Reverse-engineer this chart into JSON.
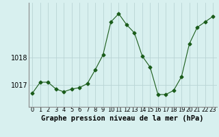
{
  "x": [
    0,
    1,
    2,
    3,
    4,
    5,
    6,
    7,
    8,
    9,
    10,
    11,
    12,
    13,
    14,
    15,
    16,
    17,
    18,
    19,
    20,
    21,
    22,
    23
  ],
  "y": [
    1016.7,
    1017.1,
    1017.1,
    1016.85,
    1016.75,
    1016.85,
    1016.9,
    1017.05,
    1017.55,
    1018.1,
    1019.3,
    1019.6,
    1019.2,
    1018.9,
    1018.05,
    1017.65,
    1016.65,
    1016.65,
    1016.8,
    1017.3,
    1018.5,
    1019.1,
    1019.3,
    1019.5
  ],
  "line_color": "#1a5c1a",
  "marker": "D",
  "marker_size": 2.5,
  "bg_color": "#d8f0ef",
  "grid_color": "#b8d4d4",
  "xlabel": "Graphe pression niveau de la mer (hPa)",
  "ylabel": "",
  "yticks": [
    1017,
    1018
  ],
  "ylim": [
    1016.2,
    1020.0
  ],
  "xlim": [
    -0.5,
    23.5
  ],
  "xlabel_fontsize": 7.5,
  "tick_fontsize": 6
}
